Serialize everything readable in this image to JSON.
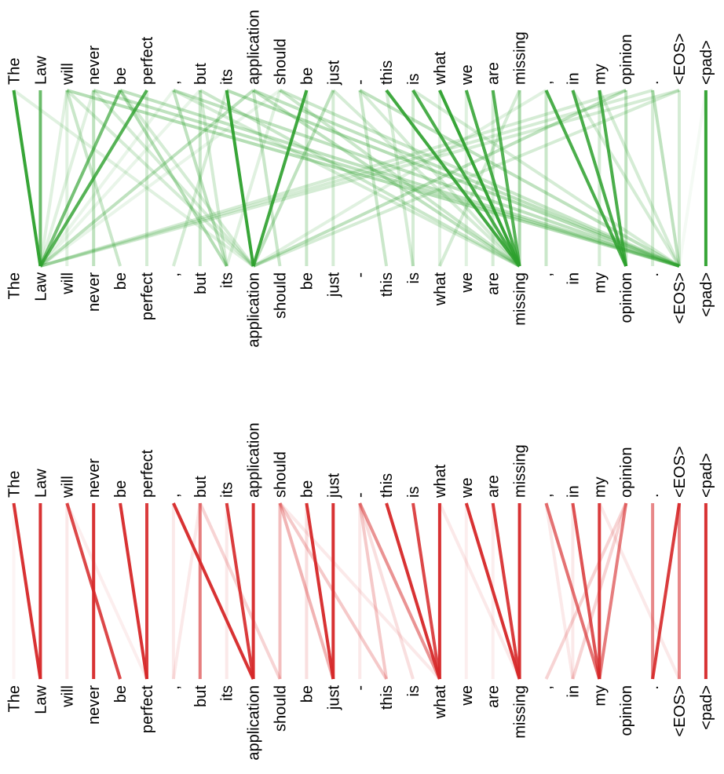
{
  "tokens": [
    "The",
    "Law",
    "will",
    "never",
    "be",
    "perfect",
    ",",
    "but",
    "its",
    "application",
    "should",
    "be",
    "just",
    "-",
    "this",
    "is",
    "what",
    "we",
    "are",
    "missing",
    ",",
    "in",
    "my",
    "opinion",
    ".",
    "<EOS>",
    "<pad>"
  ],
  "panels": [
    {
      "name": "attention-panel-green",
      "color": "#2ca02c",
      "edges": [
        [
          0,
          1,
          0.95
        ],
        [
          1,
          1,
          0.7
        ],
        [
          2,
          1,
          0.15
        ],
        [
          3,
          1,
          0.15
        ],
        [
          4,
          1,
          0.65
        ],
        [
          5,
          1,
          0.8
        ],
        [
          6,
          1,
          0.1
        ],
        [
          7,
          1,
          0.1
        ],
        [
          8,
          9,
          0.95
        ],
        [
          9,
          1,
          0.3
        ],
        [
          10,
          1,
          0.1
        ],
        [
          11,
          9,
          0.9
        ],
        [
          12,
          9,
          0.3
        ],
        [
          13,
          19,
          0.2
        ],
        [
          14,
          19,
          0.9
        ],
        [
          15,
          19,
          0.85
        ],
        [
          16,
          19,
          0.95
        ],
        [
          17,
          19,
          0.85
        ],
        [
          18,
          19,
          0.8
        ],
        [
          19,
          19,
          0.4
        ],
        [
          20,
          23,
          0.85
        ],
        [
          21,
          23,
          0.85
        ],
        [
          22,
          23,
          0.85
        ],
        [
          23,
          9,
          0.3
        ],
        [
          24,
          25,
          0.3
        ],
        [
          25,
          1,
          0.2
        ],
        [
          26,
          26,
          0.95
        ],
        [
          2,
          25,
          0.35
        ],
        [
          3,
          25,
          0.3
        ],
        [
          4,
          25,
          0.3
        ],
        [
          6,
          25,
          0.3
        ],
        [
          8,
          25,
          0.35
        ],
        [
          9,
          25,
          0.3
        ],
        [
          10,
          25,
          0.25
        ],
        [
          4,
          8,
          0.35
        ],
        [
          6,
          8,
          0.3
        ],
        [
          7,
          8,
          0.2
        ],
        [
          2,
          4,
          0.25
        ],
        [
          3,
          3,
          0.3
        ],
        [
          2,
          2,
          0.15
        ],
        [
          6,
          19,
          0.2
        ],
        [
          7,
          19,
          0.25
        ],
        [
          9,
          19,
          0.3
        ],
        [
          10,
          19,
          0.25
        ],
        [
          13,
          25,
          0.3
        ],
        [
          15,
          25,
          0.2
        ],
        [
          22,
          25,
          0.2
        ],
        [
          25,
          9,
          0.2
        ],
        [
          24,
          1,
          0.2
        ],
        [
          23,
          1,
          0.2
        ],
        [
          13,
          14,
          0.25
        ],
        [
          14,
          15,
          0.2
        ],
        [
          11,
          11,
          0.25
        ],
        [
          12,
          12,
          0.2
        ],
        [
          9,
          10,
          0.25
        ],
        [
          8,
          6,
          0.2
        ],
        [
          7,
          7,
          0.25
        ],
        [
          5,
          5,
          0.2
        ],
        [
          19,
          16,
          0.2
        ],
        [
          18,
          18,
          0.2
        ],
        [
          20,
          20,
          0.25
        ],
        [
          23,
          23,
          0.3
        ],
        [
          25,
          25,
          0.2
        ],
        [
          26,
          25,
          0.05
        ],
        [
          0,
          9,
          0.15
        ],
        [
          3,
          9,
          0.2
        ],
        [
          20,
          9,
          0.15
        ],
        [
          21,
          25,
          0.2
        ],
        [
          22,
          22,
          0.2
        ],
        [
          24,
          24,
          0.2
        ],
        [
          15,
          15,
          0.2
        ],
        [
          16,
          16,
          0.15
        ],
        [
          17,
          17,
          0.15
        ],
        [
          10,
          8,
          0.15
        ],
        [
          12,
          19,
          0.2
        ],
        [
          4,
          9,
          0.2
        ],
        [
          2,
          9,
          0.2
        ]
      ]
    },
    {
      "name": "attention-panel-red",
      "color": "#d62728",
      "edges": [
        [
          0,
          1,
          0.95
        ],
        [
          1,
          1,
          0.95
        ],
        [
          2,
          4,
          0.85
        ],
        [
          3,
          3,
          0.95
        ],
        [
          4,
          5,
          0.95
        ],
        [
          5,
          5,
          0.9
        ],
        [
          6,
          9,
          0.95
        ],
        [
          7,
          7,
          0.6
        ],
        [
          8,
          9,
          0.9
        ],
        [
          9,
          9,
          0.95
        ],
        [
          10,
          12,
          0.35
        ],
        [
          10,
          10,
          0.3
        ],
        [
          10,
          14,
          0.25
        ],
        [
          11,
          12,
          0.95
        ],
        [
          12,
          12,
          0.95
        ],
        [
          13,
          14,
          0.25
        ],
        [
          13,
          16,
          0.5
        ],
        [
          14,
          16,
          0.95
        ],
        [
          15,
          16,
          0.85
        ],
        [
          16,
          16,
          0.95
        ],
        [
          17,
          19,
          0.95
        ],
        [
          18,
          19,
          0.9
        ],
        [
          19,
          19,
          0.95
        ],
        [
          20,
          22,
          0.65
        ],
        [
          21,
          22,
          0.8
        ],
        [
          22,
          22,
          0.9
        ],
        [
          23,
          22,
          0.6
        ],
        [
          23,
          20,
          0.2
        ],
        [
          23,
          21,
          0.2
        ],
        [
          24,
          24,
          0.55
        ],
        [
          25,
          24,
          0.9
        ],
        [
          25,
          25,
          0.55
        ],
        [
          26,
          26,
          0.95
        ],
        [
          2,
          2,
          0.1
        ],
        [
          2,
          5,
          0.08
        ],
        [
          7,
          10,
          0.2
        ],
        [
          8,
          8,
          0.1
        ],
        [
          13,
          15,
          0.15
        ],
        [
          16,
          19,
          0.1
        ],
        [
          17,
          17,
          0.08
        ],
        [
          20,
          21,
          0.1
        ],
        [
          22,
          25,
          0.1
        ],
        [
          11,
          11,
          0.15
        ],
        [
          0,
          0,
          0.05
        ],
        [
          6,
          6,
          0.1
        ],
        [
          10,
          16,
          0.1
        ],
        [
          13,
          13,
          0.1
        ],
        [
          18,
          18,
          0.08
        ],
        [
          21,
          21,
          0.1
        ],
        [
          7,
          6,
          0.1
        ]
      ]
    }
  ]
}
